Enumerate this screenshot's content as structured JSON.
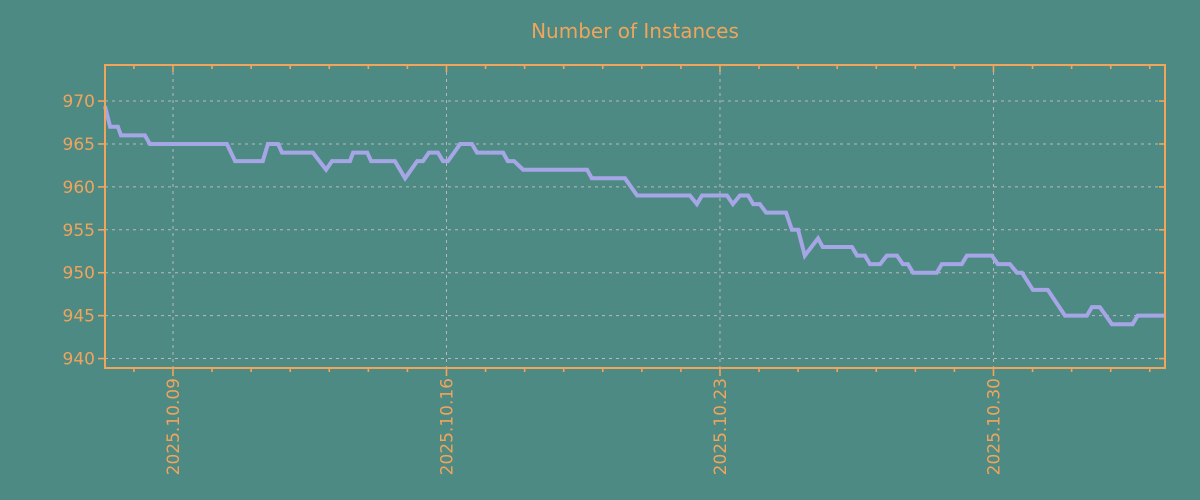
{
  "chart_data": {
    "type": "line",
    "title": "Number of Instances",
    "xlabel": "",
    "ylabel": "",
    "x_unit": "days since 2025.10.07 00:00",
    "x_domain": [
      0.26,
      27.39
    ],
    "y_domain": [
      938.9,
      974.2
    ],
    "y_ticks": [
      940,
      945,
      950,
      955,
      960,
      965,
      970
    ],
    "x_major_ticks": [
      {
        "day": 2,
        "label": "2025.10.09"
      },
      {
        "day": 9,
        "label": "2025.10.16"
      },
      {
        "day": 16,
        "label": "2025.10.23"
      },
      {
        "day": 23,
        "label": "2025.10.30"
      }
    ],
    "x_minor_tick_days": [
      1,
      2,
      3,
      4,
      5,
      6,
      7,
      8,
      9,
      10,
      11,
      12,
      13,
      14,
      15,
      16,
      17,
      18,
      19,
      20,
      21,
      22,
      23,
      24,
      25,
      26,
      27
    ],
    "grid": {
      "horizontal": true,
      "vertical_at_major_only": true,
      "style": "dashed"
    },
    "legend": "none",
    "series": [
      {
        "name": "instances",
        "points": [
          [
            0.26,
            969.4
          ],
          [
            0.39,
            967
          ],
          [
            0.59,
            967
          ],
          [
            0.67,
            966
          ],
          [
            1.28,
            966
          ],
          [
            1.41,
            965
          ],
          [
            3.38,
            965
          ],
          [
            3.59,
            963
          ],
          [
            4.3,
            963
          ],
          [
            4.43,
            965
          ],
          [
            4.69,
            965
          ],
          [
            4.79,
            964
          ],
          [
            5.58,
            964
          ],
          [
            5.92,
            962
          ],
          [
            6.07,
            963
          ],
          [
            6.53,
            963
          ],
          [
            6.61,
            964
          ],
          [
            6.97,
            964
          ],
          [
            7.07,
            963
          ],
          [
            7.68,
            963
          ],
          [
            7.94,
            961
          ],
          [
            8.25,
            963
          ],
          [
            8.4,
            963
          ],
          [
            8.55,
            964
          ],
          [
            8.78,
            964
          ],
          [
            8.91,
            963
          ],
          [
            9.04,
            963
          ],
          [
            9.35,
            965
          ],
          [
            9.65,
            965
          ],
          [
            9.78,
            964
          ],
          [
            10.45,
            964
          ],
          [
            10.57,
            963
          ],
          [
            10.73,
            963
          ],
          [
            10.96,
            962
          ],
          [
            12.6,
            962
          ],
          [
            12.72,
            961
          ],
          [
            13.57,
            961
          ],
          [
            13.88,
            959
          ],
          [
            15.23,
            959
          ],
          [
            15.41,
            958
          ],
          [
            15.54,
            959
          ],
          [
            16.18,
            959
          ],
          [
            16.33,
            958
          ],
          [
            16.51,
            959
          ],
          [
            16.72,
            959
          ],
          [
            16.85,
            958
          ],
          [
            17.02,
            958
          ],
          [
            17.18,
            957
          ],
          [
            17.69,
            957
          ],
          [
            17.84,
            955
          ],
          [
            18.0,
            955
          ],
          [
            18.17,
            952
          ],
          [
            18.51,
            954
          ],
          [
            18.63,
            953
          ],
          [
            19.38,
            953
          ],
          [
            19.51,
            952
          ],
          [
            19.71,
            952
          ],
          [
            19.84,
            951
          ],
          [
            20.1,
            951
          ],
          [
            20.27,
            952
          ],
          [
            20.53,
            952
          ],
          [
            20.68,
            951
          ],
          [
            20.81,
            951
          ],
          [
            20.94,
            950
          ],
          [
            21.55,
            950
          ],
          [
            21.68,
            951
          ],
          [
            22.19,
            951
          ],
          [
            22.32,
            952
          ],
          [
            22.96,
            952
          ],
          [
            23.11,
            951
          ],
          [
            23.42,
            951
          ],
          [
            23.6,
            950
          ],
          [
            23.73,
            950
          ],
          [
            24.01,
            948
          ],
          [
            24.39,
            948
          ],
          [
            24.83,
            945
          ],
          [
            25.39,
            945
          ],
          [
            25.52,
            946
          ],
          [
            25.72,
            946
          ],
          [
            26.03,
            944
          ],
          [
            26.56,
            944
          ],
          [
            26.69,
            945
          ],
          [
            27.39,
            945
          ]
        ]
      }
    ],
    "colors": {
      "background": "#4d8a84",
      "accent": "#f0a45c",
      "line": "#a6a6e6",
      "grid": "#b9b9b9"
    }
  }
}
